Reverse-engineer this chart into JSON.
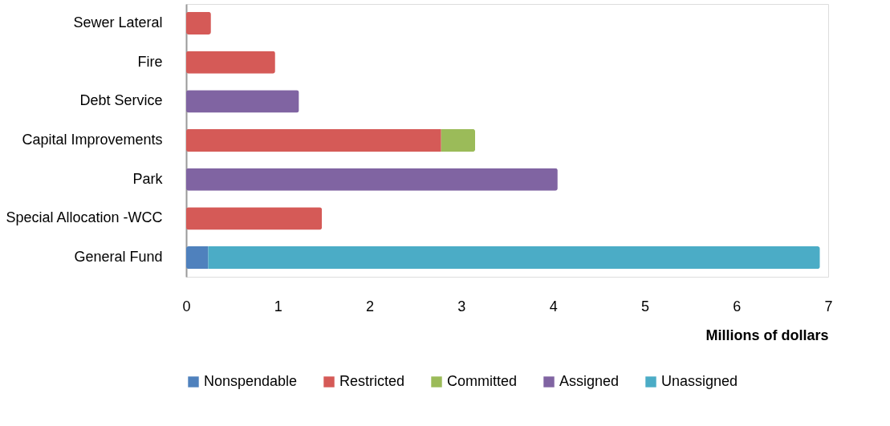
{
  "chart_data": {
    "type": "bar",
    "orientation": "horizontal",
    "stacked": true,
    "categories": [
      "Sewer Lateral",
      "Fire ",
      "Debt Service",
      "Capital Improvements",
      "Park",
      "Special Allocation -WCC",
      "General Fund"
    ],
    "series": [
      {
        "name": "Nonspendable",
        "color": "#4f81bd",
        "values": [
          null,
          null,
          null,
          null,
          null,
          null,
          0.24
        ]
      },
      {
        "name": "Restricted",
        "color": "#d55a57",
        "values": [
          0.27,
          0.97,
          null,
          2.78,
          null,
          1.48,
          null
        ]
      },
      {
        "name": "Committed",
        "color": "#9bbb59",
        "values": [
          null,
          null,
          null,
          0.37,
          null,
          null,
          null
        ]
      },
      {
        "name": "Assigned",
        "color": "#8064a2",
        "values": [
          null,
          null,
          1.23,
          null,
          4.05,
          null,
          null
        ]
      },
      {
        "name": "Unassigned",
        "color": "#4bacc6",
        "values": [
          null,
          null,
          null,
          null,
          null,
          null,
          6.67
        ]
      }
    ],
    "xlim": [
      0,
      7
    ],
    "xticks": [
      0,
      1,
      2,
      3,
      4,
      5,
      6,
      7
    ],
    "xlabel": "Millions of dollars",
    "grid": false,
    "legend": "bottom"
  }
}
